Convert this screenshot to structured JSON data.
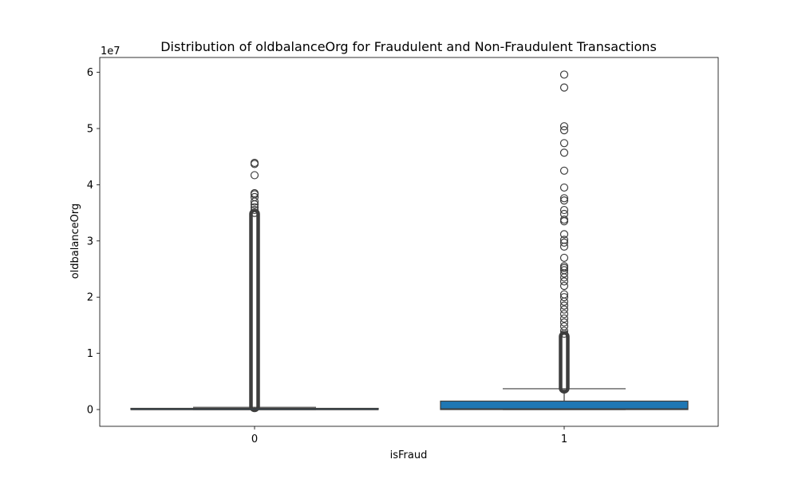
{
  "chart_data": {
    "type": "box",
    "title": "Distribution of oldbalanceOrg for Fraudulent and Non-Fraudulent Transactions",
    "xlabel": "isFraud",
    "ylabel": "oldbalanceOrg",
    "y_offset_label": "1e7",
    "y_scale": 10000000,
    "ylim": [
      -3.0,
      6.3
    ],
    "yticks": [
      0,
      1,
      2,
      3,
      4,
      5,
      6
    ],
    "categories": [
      "0",
      "1"
    ],
    "grid": false,
    "colors": {
      "box_0": "#1f77b4",
      "box_1": "#1f77b4",
      "line": "#3d3d3d",
      "axes": "#000000"
    },
    "boxes": [
      {
        "category": "0",
        "whisker_low": 0.0,
        "q1": 0.0,
        "median": 0.0,
        "q3": 0.015,
        "whisker_high": 0.04,
        "outlier_dense_range": [
          0.05,
          3.48
        ],
        "outliers": [
          3.5,
          3.55,
          3.6,
          3.65,
          3.7,
          3.78,
          3.83,
          3.85,
          4.17,
          4.37,
          4.39
        ]
      },
      {
        "category": "1",
        "whisker_low": 0.0,
        "q1": 0.0,
        "median": 0.01,
        "q3": 0.15,
        "whisker_high": 0.37,
        "outlier_dense_range": [
          0.38,
          1.3
        ],
        "outliers": [
          1.35,
          1.4,
          1.48,
          1.55,
          1.62,
          1.7,
          1.78,
          1.85,
          1.92,
          2.0,
          2.05,
          2.2,
          2.28,
          2.35,
          2.42,
          2.48,
          2.52,
          2.55,
          2.7,
          2.9,
          2.97,
          3.02,
          3.12,
          3.35,
          3.38,
          3.48,
          3.55,
          3.72,
          3.76,
          3.95,
          4.25,
          4.57,
          4.74,
          4.97,
          5.04,
          5.73,
          5.96
        ]
      }
    ]
  }
}
